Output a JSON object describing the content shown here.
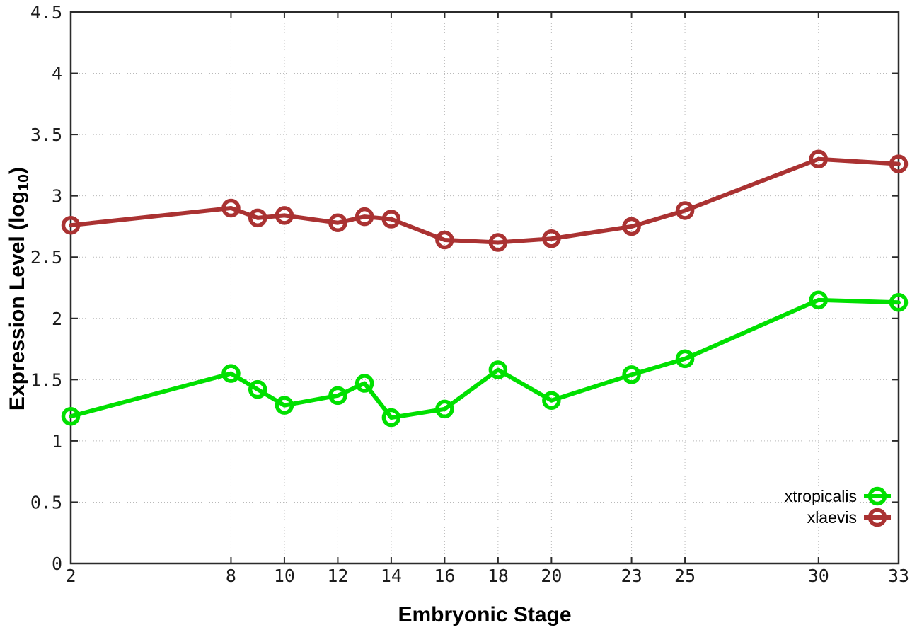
{
  "chart_data": {
    "type": "line",
    "title": "",
    "xlabel": "Embryonic Stage",
    "ylabel": "Expression Level (log10)",
    "ylabel_parts": {
      "main": "Expression Level (log",
      "sub": "10",
      "close": ")"
    },
    "x": [
      2,
      8,
      9,
      10,
      12,
      13,
      14,
      16,
      18,
      20,
      23,
      25,
      30,
      33
    ],
    "x_ticks": [
      2,
      8,
      10,
      12,
      14,
      16,
      18,
      20,
      23,
      25,
      30,
      33
    ],
    "y_ticks": [
      0,
      0.5,
      1,
      1.5,
      2,
      2.5,
      3,
      3.5,
      4,
      4.5
    ],
    "xlim": [
      2,
      33
    ],
    "ylim": [
      0,
      4.5
    ],
    "grid": true,
    "grid_style": "dotted",
    "legend_position": "inside-bottom-right",
    "series": [
      {
        "name": "xtropicalis",
        "color": "#00e000",
        "values": [
          1.2,
          1.55,
          1.42,
          1.29,
          1.37,
          1.47,
          1.19,
          1.26,
          1.58,
          1.33,
          1.54,
          1.67,
          2.15,
          2.13
        ]
      },
      {
        "name": "xlaevis",
        "color": "#aa3232",
        "values": [
          2.76,
          2.9,
          2.82,
          2.84,
          2.78,
          2.83,
          2.81,
          2.64,
          2.62,
          2.65,
          2.75,
          2.88,
          3.3,
          3.26
        ]
      }
    ],
    "marker": "open-circle",
    "background": "#ffffff",
    "border_color": "#2b2b2b"
  }
}
